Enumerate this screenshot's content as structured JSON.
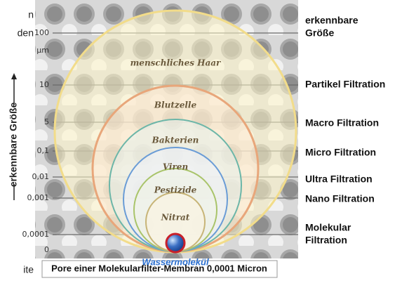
{
  "left_fragments": [
    "n",
    "den",
    "ite"
  ],
  "side_label": "erkennbare Größe",
  "axis_labels": [
    "100",
    "µm",
    "10",
    "5",
    "0,1",
    "0,01",
    "0,001",
    "0,0001",
    "0"
  ],
  "particles": [
    "menschliches Haar",
    "Blutzelle",
    "Bakterien",
    "Viren",
    "Pestizide",
    "Nitrat"
  ],
  "molecule_label": "Wassermolekül",
  "right_labels": [
    [
      "erkennbare",
      "Größe"
    ],
    [
      "Partikel Filtration"
    ],
    [
      "Macro Filtration"
    ],
    [
      "Micro Filtration"
    ],
    [
      "Ultra Filtration"
    ],
    [
      "Nano Filtration"
    ],
    [
      "Molekular",
      "Filtration"
    ]
  ],
  "caption": "Pore einer Molekularfilter-Membran 0,0001 Micron"
}
